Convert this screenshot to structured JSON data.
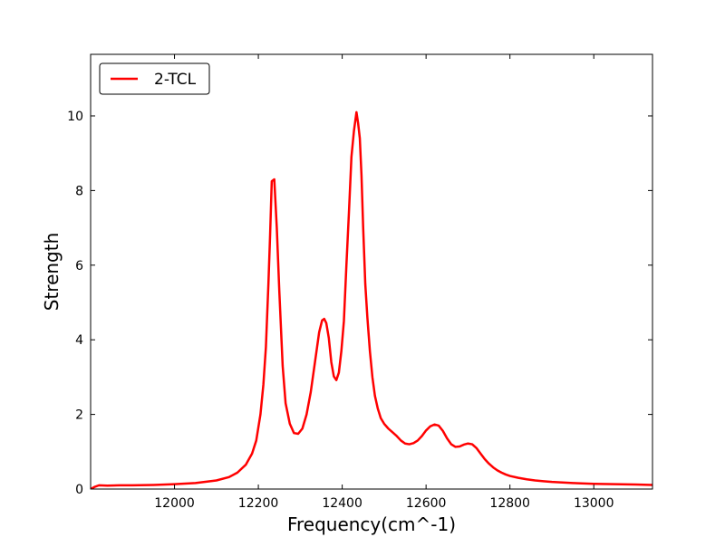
{
  "chart_data": {
    "type": "line",
    "title": "",
    "xlabel": "Frequency(cm^-1)",
    "ylabel": "Strength",
    "xlim": [
      11800,
      13140
    ],
    "ylim": [
      0,
      11.65
    ],
    "grid": false,
    "legend_position": "top-left",
    "x_ticks": [
      12000,
      12200,
      12400,
      12600,
      12800,
      13000
    ],
    "y_ticks": [
      0,
      2,
      4,
      6,
      8,
      10
    ],
    "series": [
      {
        "name": "2-TCL",
        "color": "#ff0000",
        "x": [
          11800,
          11810,
          11820,
          11840,
          11870,
          11900,
          11950,
          12000,
          12050,
          12100,
          12130,
          12150,
          12170,
          12185,
          12195,
          12205,
          12212,
          12218,
          12224,
          12228,
          12232,
          12238,
          12244,
          12250,
          12258,
          12265,
          12275,
          12285,
          12295,
          12305,
          12315,
          12325,
          12335,
          12345,
          12352,
          12357,
          12362,
          12368,
          12374,
          12380,
          12386,
          12392,
          12398,
          12404,
          12410,
          12416,
          12422,
          12428,
          12434,
          12438,
          12442,
          12446,
          12450,
          12455,
          12460,
          12466,
          12472,
          12478,
          12485,
          12492,
          12500,
          12510,
          12520,
          12530,
          12540,
          12550,
          12560,
          12570,
          12580,
          12590,
          12600,
          12610,
          12620,
          12630,
          12640,
          12650,
          12660,
          12670,
          12680,
          12690,
          12700,
          12710,
          12720,
          12730,
          12740,
          12750,
          12760,
          12770,
          12780,
          12790,
          12800,
          12820,
          12840,
          12860,
          12880,
          12900,
          12950,
          13000,
          13050,
          13100,
          13140
        ],
        "values": [
          0.0,
          0.06,
          0.1,
          0.09,
          0.1,
          0.1,
          0.11,
          0.13,
          0.16,
          0.23,
          0.32,
          0.44,
          0.65,
          0.95,
          1.3,
          2.0,
          2.8,
          3.8,
          5.5,
          6.8,
          8.25,
          8.3,
          7.0,
          5.3,
          3.3,
          2.3,
          1.75,
          1.5,
          1.48,
          1.62,
          2.0,
          2.6,
          3.4,
          4.2,
          4.52,
          4.56,
          4.45,
          4.05,
          3.4,
          3.02,
          2.92,
          3.12,
          3.7,
          4.5,
          6.0,
          7.4,
          8.9,
          9.6,
          10.1,
          9.8,
          9.4,
          8.4,
          7.0,
          5.5,
          4.6,
          3.7,
          3.0,
          2.5,
          2.15,
          1.9,
          1.75,
          1.62,
          1.52,
          1.42,
          1.3,
          1.22,
          1.2,
          1.23,
          1.3,
          1.42,
          1.57,
          1.68,
          1.73,
          1.7,
          1.56,
          1.36,
          1.2,
          1.13,
          1.14,
          1.19,
          1.22,
          1.2,
          1.1,
          0.95,
          0.8,
          0.68,
          0.58,
          0.5,
          0.44,
          0.39,
          0.35,
          0.3,
          0.26,
          0.23,
          0.21,
          0.19,
          0.16,
          0.14,
          0.13,
          0.12,
          0.11
        ]
      }
    ]
  }
}
